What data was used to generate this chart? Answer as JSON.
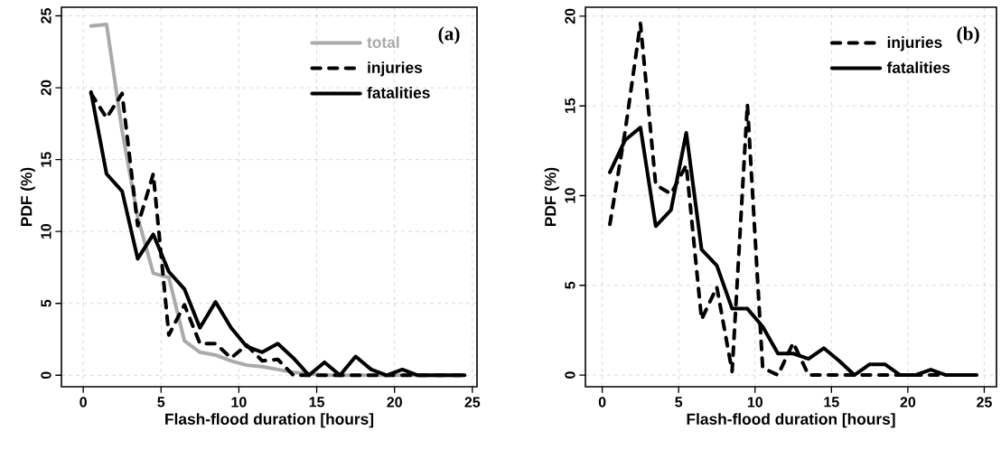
{
  "chart_data": [
    {
      "type": "line",
      "title": "(a)",
      "xlabel": "Flash-flood duration [hours]",
      "ylabel": "PDF (%)",
      "x": [
        0.5,
        1.5,
        2.5,
        3.5,
        4.5,
        5.5,
        6.5,
        7.5,
        8.5,
        9.5,
        10.5,
        11.5,
        12.5,
        13.5,
        14.5,
        15.5,
        16.5,
        17.5,
        18.5,
        19.5,
        20.5,
        21.5,
        22.5,
        23.5,
        24.5
      ],
      "xlim": [
        -1.4,
        25.3
      ],
      "ylim": [
        -0.8,
        25.6
      ],
      "xticks": [
        0,
        5,
        10,
        15,
        20,
        25
      ],
      "yticks": [
        0,
        5,
        10,
        15,
        20,
        25
      ],
      "grid": true,
      "legend": "top right",
      "series": [
        {
          "name": "total",
          "color": "#aaaaaa",
          "line_style": "solid",
          "values": [
            24.3,
            24.4,
            17,
            11,
            7.1,
            6.8,
            2.4,
            1.6,
            1.4,
            1.0,
            0.7,
            0.6,
            0.4,
            0.2,
            0.1,
            0,
            0,
            0,
            0,
            0,
            0,
            0,
            0,
            0,
            0
          ]
        },
        {
          "name": "injuries",
          "color": "#000000",
          "line_style": "dashed",
          "values": [
            19.6,
            17.9,
            19.6,
            10.4,
            14.0,
            2.8,
            4.9,
            2.2,
            2.2,
            1.2,
            2.1,
            1.0,
            1.1,
            0,
            0,
            0,
            0,
            0,
            0,
            0,
            0,
            0,
            0,
            0,
            0
          ]
        },
        {
          "name": "fatalities",
          "color": "#000000",
          "line_style": "solid",
          "values": [
            19.7,
            14.0,
            12.8,
            8.1,
            9.8,
            7.2,
            6.0,
            3.3,
            5.1,
            3.3,
            2.0,
            1.6,
            2.2,
            1.2,
            0,
            0.9,
            0,
            1.3,
            0.4,
            0,
            0.4,
            0,
            0,
            0,
            0
          ]
        }
      ]
    },
    {
      "type": "line",
      "title": "(b)",
      "xlabel": "Flash-flood duration [hours]",
      "ylabel": "PDF (%)",
      "x": [
        0.5,
        1.5,
        2.5,
        3.5,
        4.5,
        5.5,
        6.5,
        7.5,
        8.5,
        9.5,
        10.5,
        11.5,
        12.5,
        13.5,
        14.5,
        15.5,
        16.5,
        17.5,
        18.5,
        19.5,
        20.5,
        21.5,
        22.5,
        23.5,
        24.5
      ],
      "xlim": [
        -1.1,
        25.8
      ],
      "ylim": [
        -0.65,
        20.5
      ],
      "xticks": [
        0,
        5,
        10,
        15,
        20,
        25
      ],
      "yticks": [
        0,
        5,
        10,
        15,
        20
      ],
      "grid": true,
      "legend": "top right",
      "series": [
        {
          "name": "injuries",
          "color": "#000000",
          "line_style": "dashed",
          "values": [
            8.4,
            13.6,
            19.6,
            10.6,
            10.1,
            11.7,
            3.1,
            4.9,
            0.2,
            15.1,
            0.4,
            0,
            1.8,
            0,
            0,
            0,
            0,
            0,
            0,
            0,
            0,
            0,
            0,
            0,
            0
          ]
        },
        {
          "name": "fatalities",
          "color": "#000000",
          "line_style": "solid",
          "values": [
            11.3,
            13.1,
            13.8,
            8.3,
            9.2,
            13.5,
            7.0,
            6.1,
            3.7,
            3.7,
            2.7,
            1.2,
            1.2,
            0.9,
            1.5,
            0.8,
            0,
            0.6,
            0.6,
            0,
            0,
            0.3,
            0,
            0,
            0
          ]
        }
      ]
    }
  ]
}
